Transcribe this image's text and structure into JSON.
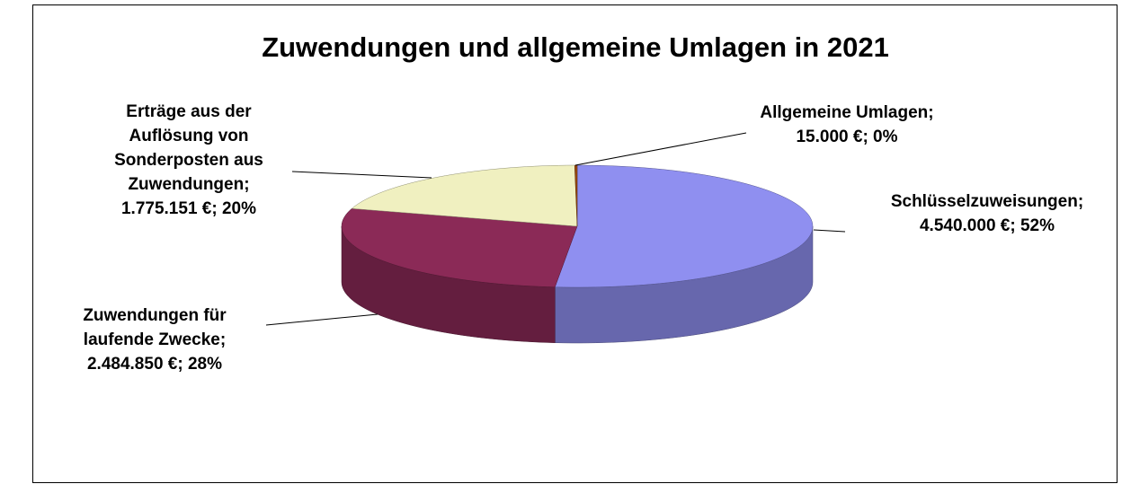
{
  "chart_data": {
    "type": "pie3d",
    "title": "Zuwendungen und allgemeine Umlagen in 2021",
    "categories": [
      "Schlüsselzuweisungen;",
      "Zuwendungen für laufende Zwecke;",
      "Erträge aus der Auflösung von Sonderposten aus Zuwendungen;",
      "Allgemeine Umlagen;"
    ],
    "values": [
      4540000,
      2484850,
      1775151,
      15000
    ],
    "value_labels": [
      "4.540.000 €; 52%",
      "2.484.850 €; 28%",
      "1.775.151 €; 20%",
      "15.000 €; 0%"
    ],
    "colors": [
      "#8f8ff0",
      "#8b2a57",
      "#f0f0c0",
      "#9a4a10"
    ]
  }
}
